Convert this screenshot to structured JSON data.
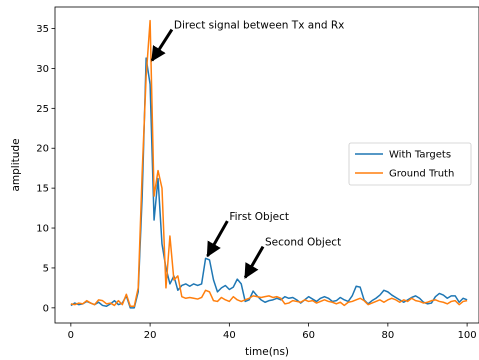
{
  "chart_data": {
    "type": "line",
    "xlabel": "time(ns)",
    "ylabel": "amplitude",
    "xlim": [
      -4,
      103
    ],
    "ylim": [
      -1.9,
      37.7
    ],
    "x_ticks": [
      0,
      20,
      40,
      60,
      80,
      100
    ],
    "y_ticks": [
      0,
      5,
      10,
      15,
      20,
      25,
      30,
      35
    ],
    "grid": false,
    "legend_position": "center-right",
    "series": [
      {
        "name": "With Targets",
        "color": "#1f77b4",
        "points": [
          [
            0,
            0.3
          ],
          [
            1,
            0.6
          ],
          [
            2,
            0.4
          ],
          [
            3,
            0.5
          ],
          [
            4,
            0.8
          ],
          [
            5,
            0.6
          ],
          [
            6,
            0.4
          ],
          [
            7,
            0.7
          ],
          [
            8,
            0.3
          ],
          [
            9,
            0.2
          ],
          [
            10,
            0.5
          ],
          [
            11,
            0.9
          ],
          [
            12,
            0.4
          ],
          [
            13,
            0.6
          ],
          [
            14,
            1.5
          ],
          [
            15,
            0.0
          ],
          [
            16,
            0.0
          ],
          [
            17,
            2.0
          ],
          [
            18,
            14.0
          ],
          [
            19,
            31.3
          ],
          [
            20,
            28.0
          ],
          [
            21,
            11.0
          ],
          [
            22,
            16.2
          ],
          [
            23,
            8.0
          ],
          [
            24,
            5.0
          ],
          [
            25,
            3.0
          ],
          [
            26,
            4.0
          ],
          [
            27,
            2.2
          ],
          [
            28,
            2.8
          ],
          [
            29,
            3.0
          ],
          [
            30,
            2.7
          ],
          [
            31,
            3.0
          ],
          [
            32,
            2.8
          ],
          [
            33,
            3.0
          ],
          [
            34,
            6.2
          ],
          [
            35,
            6.0
          ],
          [
            36,
            3.5
          ],
          [
            37,
            2.0
          ],
          [
            38,
            2.5
          ],
          [
            39,
            2.8
          ],
          [
            40,
            2.3
          ],
          [
            41,
            2.6
          ],
          [
            42,
            3.6
          ],
          [
            43,
            3.0
          ],
          [
            44,
            0.8
          ],
          [
            45,
            1.0
          ],
          [
            46,
            2.1
          ],
          [
            47,
            1.5
          ],
          [
            48,
            1.0
          ],
          [
            49,
            0.7
          ],
          [
            50,
            0.9
          ],
          [
            51,
            1.0
          ],
          [
            52,
            1.2
          ],
          [
            53,
            1.0
          ],
          [
            54,
            1.4
          ],
          [
            55,
            1.2
          ],
          [
            56,
            1.3
          ],
          [
            57,
            1.0
          ],
          [
            58,
            0.6
          ],
          [
            59,
            1.0
          ],
          [
            60,
            1.4
          ],
          [
            61,
            1.1
          ],
          [
            62,
            0.8
          ],
          [
            63,
            1.2
          ],
          [
            64,
            1.4
          ],
          [
            65,
            1.2
          ],
          [
            66,
            0.8
          ],
          [
            67,
            0.9
          ],
          [
            68,
            1.3
          ],
          [
            69,
            1.0
          ],
          [
            70,
            0.8
          ],
          [
            71,
            1.5
          ],
          [
            72,
            2.7
          ],
          [
            73,
            2.6
          ],
          [
            74,
            1.0
          ],
          [
            75,
            0.5
          ],
          [
            76,
            0.9
          ],
          [
            77,
            1.2
          ],
          [
            78,
            1.6
          ],
          [
            79,
            2.2
          ],
          [
            80,
            2.0
          ],
          [
            81,
            1.6
          ],
          [
            82,
            1.3
          ],
          [
            83,
            1.0
          ],
          [
            84,
            0.7
          ],
          [
            85,
            1.0
          ],
          [
            86,
            1.3
          ],
          [
            87,
            1.5
          ],
          [
            88,
            1.2
          ],
          [
            89,
            0.7
          ],
          [
            90,
            0.5
          ],
          [
            91,
            0.6
          ],
          [
            92,
            1.4
          ],
          [
            93,
            1.8
          ],
          [
            94,
            1.6
          ],
          [
            95,
            1.2
          ],
          [
            96,
            1.5
          ],
          [
            97,
            1.5
          ],
          [
            98,
            0.7
          ],
          [
            99,
            1.2
          ],
          [
            100,
            1.0
          ]
        ]
      },
      {
        "name": "Ground Truth",
        "color": "#ff7f0e",
        "points": [
          [
            0,
            0.5
          ],
          [
            1,
            0.4
          ],
          [
            2,
            0.6
          ],
          [
            3,
            0.5
          ],
          [
            4,
            0.9
          ],
          [
            5,
            0.6
          ],
          [
            6,
            0.4
          ],
          [
            7,
            1.0
          ],
          [
            8,
            0.9
          ],
          [
            9,
            0.5
          ],
          [
            10,
            0.6
          ],
          [
            11,
            0.3
          ],
          [
            12,
            0.9
          ],
          [
            13,
            0.4
          ],
          [
            14,
            1.7
          ],
          [
            15,
            0.2
          ],
          [
            16,
            0.2
          ],
          [
            17,
            2.5
          ],
          [
            18,
            17.0
          ],
          [
            19,
            29.0
          ],
          [
            20,
            36.0
          ],
          [
            21,
            14.0
          ],
          [
            22,
            17.2
          ],
          [
            23,
            15.0
          ],
          [
            24,
            2.5
          ],
          [
            25,
            9.0
          ],
          [
            26,
            3.5
          ],
          [
            27,
            4.0
          ],
          [
            28,
            1.4
          ],
          [
            29,
            1.2
          ],
          [
            30,
            1.3
          ],
          [
            31,
            1.2
          ],
          [
            32,
            1.1
          ],
          [
            33,
            1.3
          ],
          [
            34,
            2.2
          ],
          [
            35,
            2.0
          ],
          [
            36,
            0.9
          ],
          [
            37,
            0.8
          ],
          [
            38,
            1.3
          ],
          [
            39,
            1.0
          ],
          [
            40,
            0.8
          ],
          [
            41,
            1.4
          ],
          [
            42,
            1.0
          ],
          [
            43,
            0.8
          ],
          [
            44,
            1.0
          ],
          [
            45,
            1.2
          ],
          [
            46,
            1.5
          ],
          [
            47,
            1.4
          ],
          [
            48,
            1.3
          ],
          [
            49,
            1.4
          ],
          [
            50,
            1.5
          ],
          [
            51,
            1.3
          ],
          [
            52,
            1.4
          ],
          [
            53,
            1.2
          ],
          [
            54,
            0.5
          ],
          [
            55,
            0.6
          ],
          [
            56,
            0.9
          ],
          [
            57,
            0.8
          ],
          [
            58,
            0.7
          ],
          [
            59,
            1.0
          ],
          [
            60,
            0.8
          ],
          [
            61,
            0.9
          ],
          [
            62,
            0.6
          ],
          [
            63,
            0.8
          ],
          [
            64,
            1.0
          ],
          [
            65,
            0.8
          ],
          [
            66,
            0.7
          ],
          [
            67,
            0.5
          ],
          [
            68,
            0.7
          ],
          [
            69,
            0.3
          ],
          [
            70,
            0.7
          ],
          [
            71,
            0.8
          ],
          [
            72,
            1.0
          ],
          [
            73,
            1.2
          ],
          [
            74,
            0.9
          ],
          [
            75,
            0.4
          ],
          [
            76,
            0.6
          ],
          [
            77,
            0.8
          ],
          [
            78,
            1.0
          ],
          [
            79,
            0.7
          ],
          [
            80,
            1.0
          ],
          [
            81,
            1.2
          ],
          [
            82,
            1.0
          ],
          [
            83,
            0.7
          ],
          [
            84,
            1.0
          ],
          [
            85,
            0.8
          ],
          [
            86,
            1.2
          ],
          [
            87,
            0.9
          ],
          [
            88,
            0.8
          ],
          [
            89,
            0.6
          ],
          [
            90,
            0.7
          ],
          [
            91,
            0.9
          ],
          [
            92,
            1.0
          ],
          [
            93,
            0.8
          ],
          [
            94,
            0.7
          ],
          [
            95,
            0.5
          ],
          [
            96,
            0.8
          ],
          [
            97,
            0.9
          ],
          [
            98,
            0.4
          ],
          [
            99,
            0.8
          ],
          [
            100,
            0.9
          ]
        ]
      }
    ],
    "annotations": [
      {
        "text": "Direct signal between Tx and Rx",
        "xy": [
          20.5,
          31.0
        ],
        "xytext": [
          26,
          35.5
        ]
      },
      {
        "text": "First Object",
        "xy": [
          34.5,
          6.5
        ],
        "xytext": [
          40,
          11.5
        ]
      },
      {
        "text": "Second Object",
        "xy": [
          44,
          3.8
        ],
        "xytext": [
          49,
          8.3
        ]
      }
    ]
  }
}
